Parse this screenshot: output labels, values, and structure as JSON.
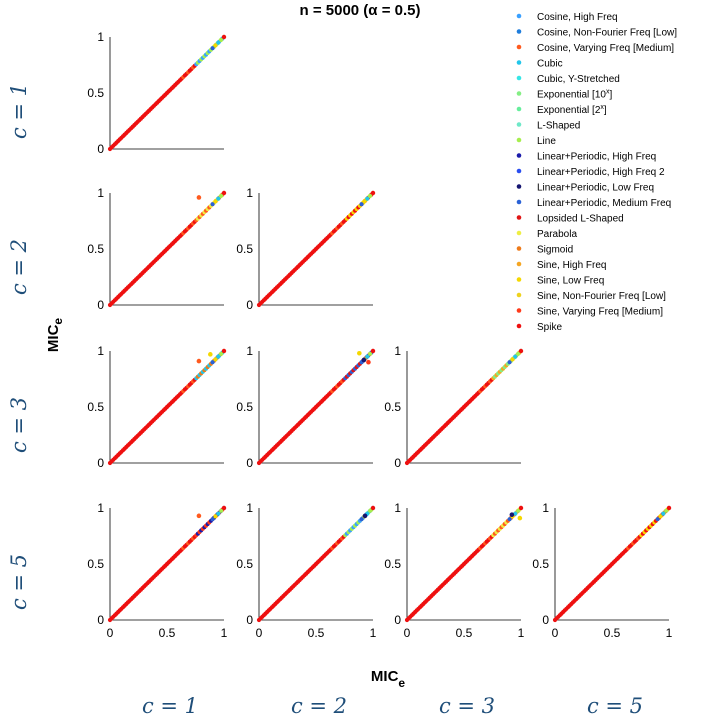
{
  "chart_data": {
    "type": "scatter",
    "title": "n = 5000  (α = 0.5)",
    "xlabel": "MIC",
    "xlabel_subscript": "e",
    "ylabel": "MIC",
    "ylabel_subscript": "e",
    "xlim": [
      0,
      1
    ],
    "ylim": [
      0,
      1
    ],
    "xticks": [
      "0",
      "0.5",
      "1"
    ],
    "yticks": [
      "0",
      "0.5",
      "1"
    ],
    "row_labels": [
      "c = 1",
      "c = 2",
      "c = 3",
      "c = 5"
    ],
    "col_labels": [
      "c = 1",
      "c = 2",
      "c = 3",
      "c = 5"
    ],
    "legend_position": "top-right",
    "series": [
      {
        "name": "Cosine, High Freq",
        "color": "#3aa0ff"
      },
      {
        "name": "Cosine, Non-Fourier Freq [Low]",
        "color": "#1e7ddc"
      },
      {
        "name": "Cosine, Varying Freq [Medium]",
        "color": "#ff5a1e"
      },
      {
        "name": "Cubic",
        "color": "#22c6ea"
      },
      {
        "name": "Cubic, Y-Stretched",
        "color": "#36e6e6"
      },
      {
        "name": "Exponential [10^x]",
        "color": "#84ee84"
      },
      {
        "name": "Exponential [2^x]",
        "color": "#66ee9c"
      },
      {
        "name": "L-Shaped",
        "color": "#6ee8c8"
      },
      {
        "name": "Line",
        "color": "#a6ee4e"
      },
      {
        "name": "Linear+Periodic, High Freq",
        "color": "#1a1aaa"
      },
      {
        "name": "Linear+Periodic, High Freq 2",
        "color": "#2a4ef0"
      },
      {
        "name": "Linear+Periodic, Low Freq",
        "color": "#141470"
      },
      {
        "name": "Linear+Periodic, Medium Freq",
        "color": "#2a62d6"
      },
      {
        "name": "Lopsided L-Shaped",
        "color": "#e01414"
      },
      {
        "name": "Parabola",
        "color": "#eeee44"
      },
      {
        "name": "Sigmoid",
        "color": "#ee7a1a"
      },
      {
        "name": "Sine, High Freq",
        "color": "#f5a623"
      },
      {
        "name": "Sine, Low Freq",
        "color": "#f5d800"
      },
      {
        "name": "Sine, Non-Fourier Freq [Low]",
        "color": "#eed21e"
      },
      {
        "name": "Sine, Varying Freq [Medium]",
        "color": "#ff3a1a"
      },
      {
        "name": "Spike",
        "color": "#ee1010"
      }
    ],
    "panels": [
      {
        "row": 0,
        "col": 0,
        "outliers": []
      },
      {
        "row": 1,
        "col": 0,
        "outliers": [
          {
            "x": 0.78,
            "y": 0.96,
            "series": "Cosine, Varying Freq [Medium]"
          }
        ]
      },
      {
        "row": 1,
        "col": 1,
        "outliers": []
      },
      {
        "row": 2,
        "col": 0,
        "outliers": [
          {
            "x": 0.78,
            "y": 0.91,
            "series": "Cosine, Varying Freq [Medium]"
          },
          {
            "x": 0.88,
            "y": 0.97,
            "series": "Sine, Low Freq"
          }
        ]
      },
      {
        "row": 2,
        "col": 1,
        "outliers": [
          {
            "x": 0.88,
            "y": 0.98,
            "series": "Sine, Low Freq"
          },
          {
            "x": 0.92,
            "y": 0.92,
            "series": "Linear+Periodic, Low Freq"
          },
          {
            "x": 0.96,
            "y": 0.9,
            "series": "Sine, Varying Freq [Medium]"
          }
        ]
      },
      {
        "row": 2,
        "col": 2,
        "outliers": []
      },
      {
        "row": 3,
        "col": 0,
        "outliers": [
          {
            "x": 0.78,
            "y": 0.93,
            "series": "Cosine, Varying Freq [Medium]"
          }
        ]
      },
      {
        "row": 3,
        "col": 1,
        "outliers": [
          {
            "x": 0.93,
            "y": 0.93,
            "series": "Linear+Periodic, Low Freq"
          }
        ]
      },
      {
        "row": 3,
        "col": 2,
        "outliers": [
          {
            "x": 0.92,
            "y": 0.94,
            "series": "Linear+Periodic, Low Freq"
          },
          {
            "x": 0.99,
            "y": 0.91,
            "series": "Sine, Low Freq"
          }
        ]
      },
      {
        "row": 3,
        "col": 3,
        "outliers": []
      }
    ]
  }
}
